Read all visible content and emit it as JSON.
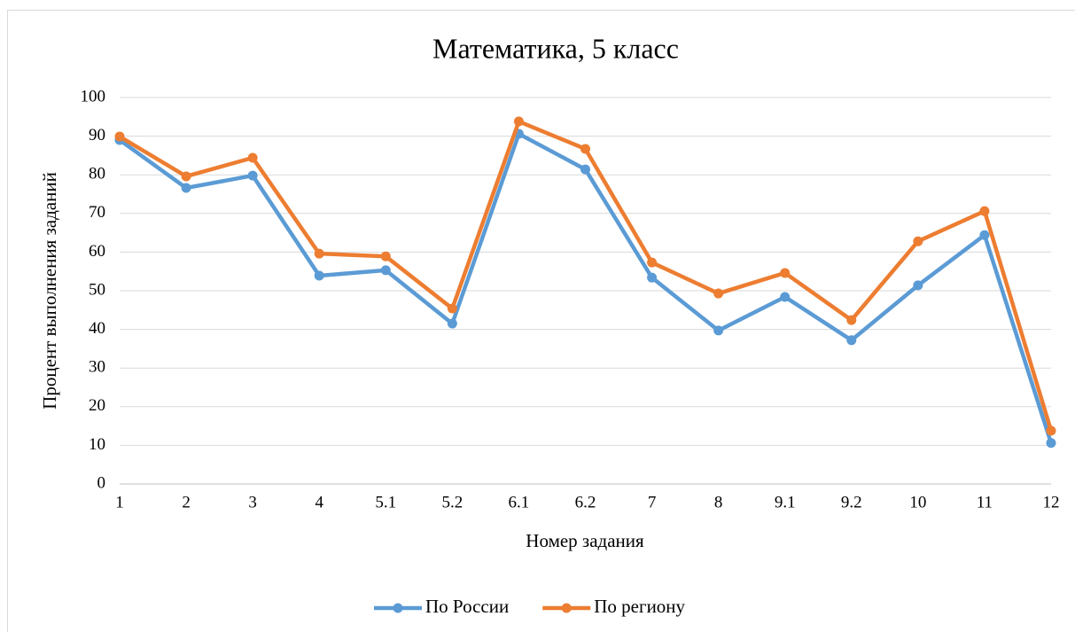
{
  "chart_data": {
    "type": "line",
    "title": "Математика, 5 класс",
    "x_label": "Номер задания",
    "y_label": "Процент выполнения заданий",
    "categories": [
      "1",
      "2",
      "3",
      "4",
      "5.1",
      "5.2",
      "6.1",
      "6.2",
      "7",
      "8",
      "9.1",
      "9.2",
      "10",
      "11",
      "12"
    ],
    "series": [
      {
        "name": "По России",
        "color": "#5b9bd5",
        "values": [
          89.0,
          76.6,
          79.8,
          53.9,
          55.3,
          41.5,
          90.6,
          81.4,
          53.4,
          39.7,
          48.4,
          37.2,
          51.4,
          64.4,
          10.6
        ]
      },
      {
        "name": "По региону",
        "color": "#ed7d31",
        "values": [
          89.9,
          79.6,
          84.4,
          59.6,
          58.9,
          45.4,
          93.8,
          86.7,
          57.3,
          49.3,
          54.6,
          42.4,
          62.8,
          70.6,
          13.8
        ]
      }
    ],
    "ylim": [
      0,
      100
    ],
    "yticks": [
      0,
      10,
      20,
      30,
      40,
      50,
      60,
      70,
      80,
      90,
      100
    ],
    "grid": true,
    "legend": "bottom"
  }
}
